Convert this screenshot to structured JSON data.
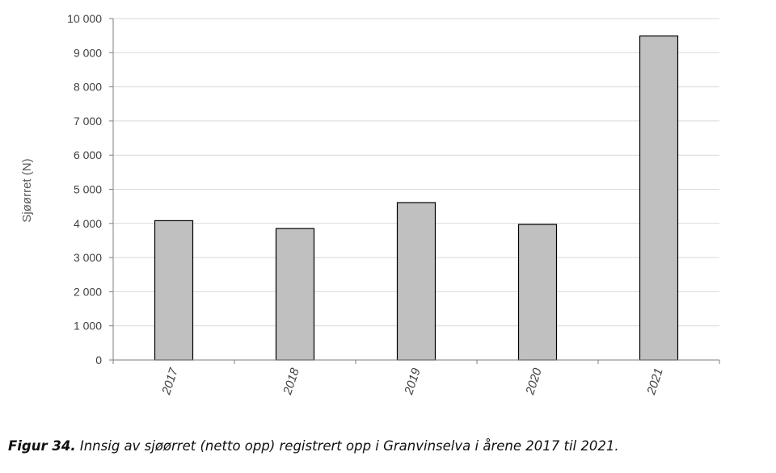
{
  "chart_data": {
    "type": "bar",
    "categories": [
      "2017",
      "2018",
      "2019",
      "2020",
      "2021"
    ],
    "values": [
      4080,
      3850,
      4610,
      3970,
      9490
    ],
    "ylabel": "Sjøørret (N)",
    "xlabel": "",
    "ylim": [
      0,
      10000
    ],
    "yticks": [
      0,
      1000,
      2000,
      3000,
      4000,
      5000,
      6000,
      7000,
      8000,
      9000,
      10000
    ],
    "ytick_labels": [
      "0",
      "1 000",
      "2 000",
      "3 000",
      "4 000",
      "5 000",
      "6 000",
      "7 000",
      "8 000",
      "9 000",
      "10 000"
    ],
    "grid": true,
    "bar_color": "#c0c0c0",
    "bar_edge_color": "#000000",
    "gridline_color": "#d9d9d9",
    "axis_color": "#7f7f7f"
  },
  "caption": {
    "label": "Figur 34.",
    "text": " Innsig av sjøørret (netto opp) registrert opp i Granvinselva i årene 2017 til 2021."
  }
}
